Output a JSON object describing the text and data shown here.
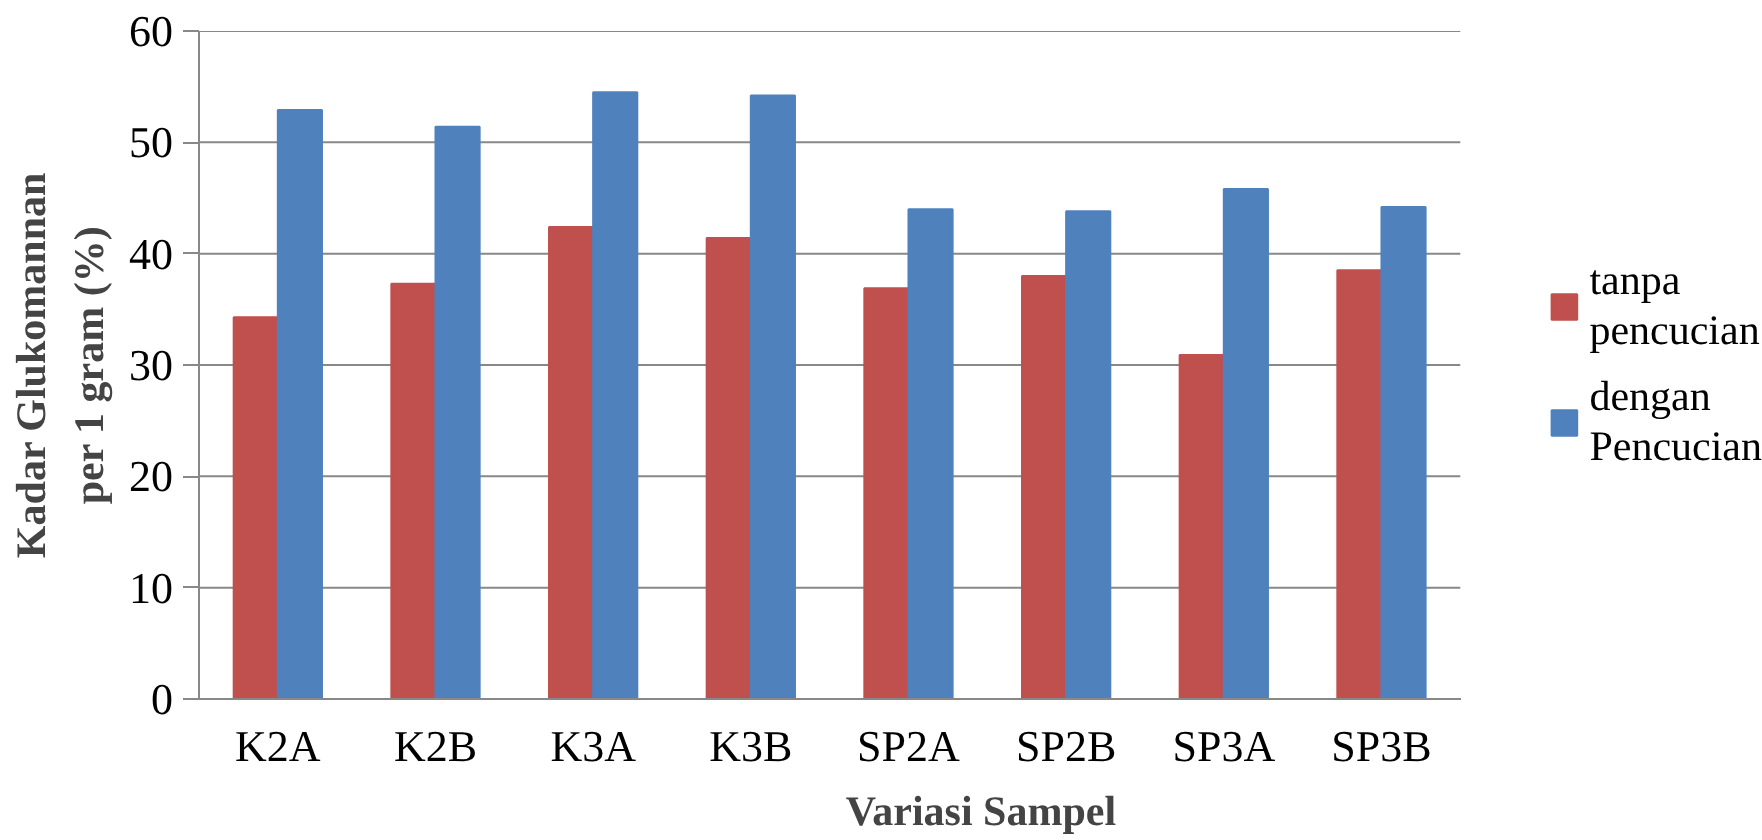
{
  "chart_data": {
    "type": "bar",
    "xlabel": "Variasi Sampel",
    "ylabel": "Kadar Glukomannan per 1 gram (%)",
    "categories": [
      "K2A",
      "K2B",
      "K3A",
      "K3B",
      "SP2A",
      "SP2B",
      "SP3A",
      "SP3B"
    ],
    "series": [
      {
        "name": "tanpa pencucian",
        "color": "#c0504d",
        "values": [
          34.3,
          37.3,
          42.4,
          41.4,
          36.9,
          38.0,
          30.9,
          38.5
        ]
      },
      {
        "name": "dengan Pencucian",
        "color": "#4f81bd",
        "values": [
          52.9,
          51.4,
          54.5,
          54.2,
          44.0,
          43.8,
          45.8,
          44.2
        ]
      }
    ],
    "ylim": [
      0,
      60
    ],
    "yticks": [
      0,
      10,
      20,
      30,
      40,
      50,
      60
    ],
    "grid": "y",
    "legend": "right"
  }
}
